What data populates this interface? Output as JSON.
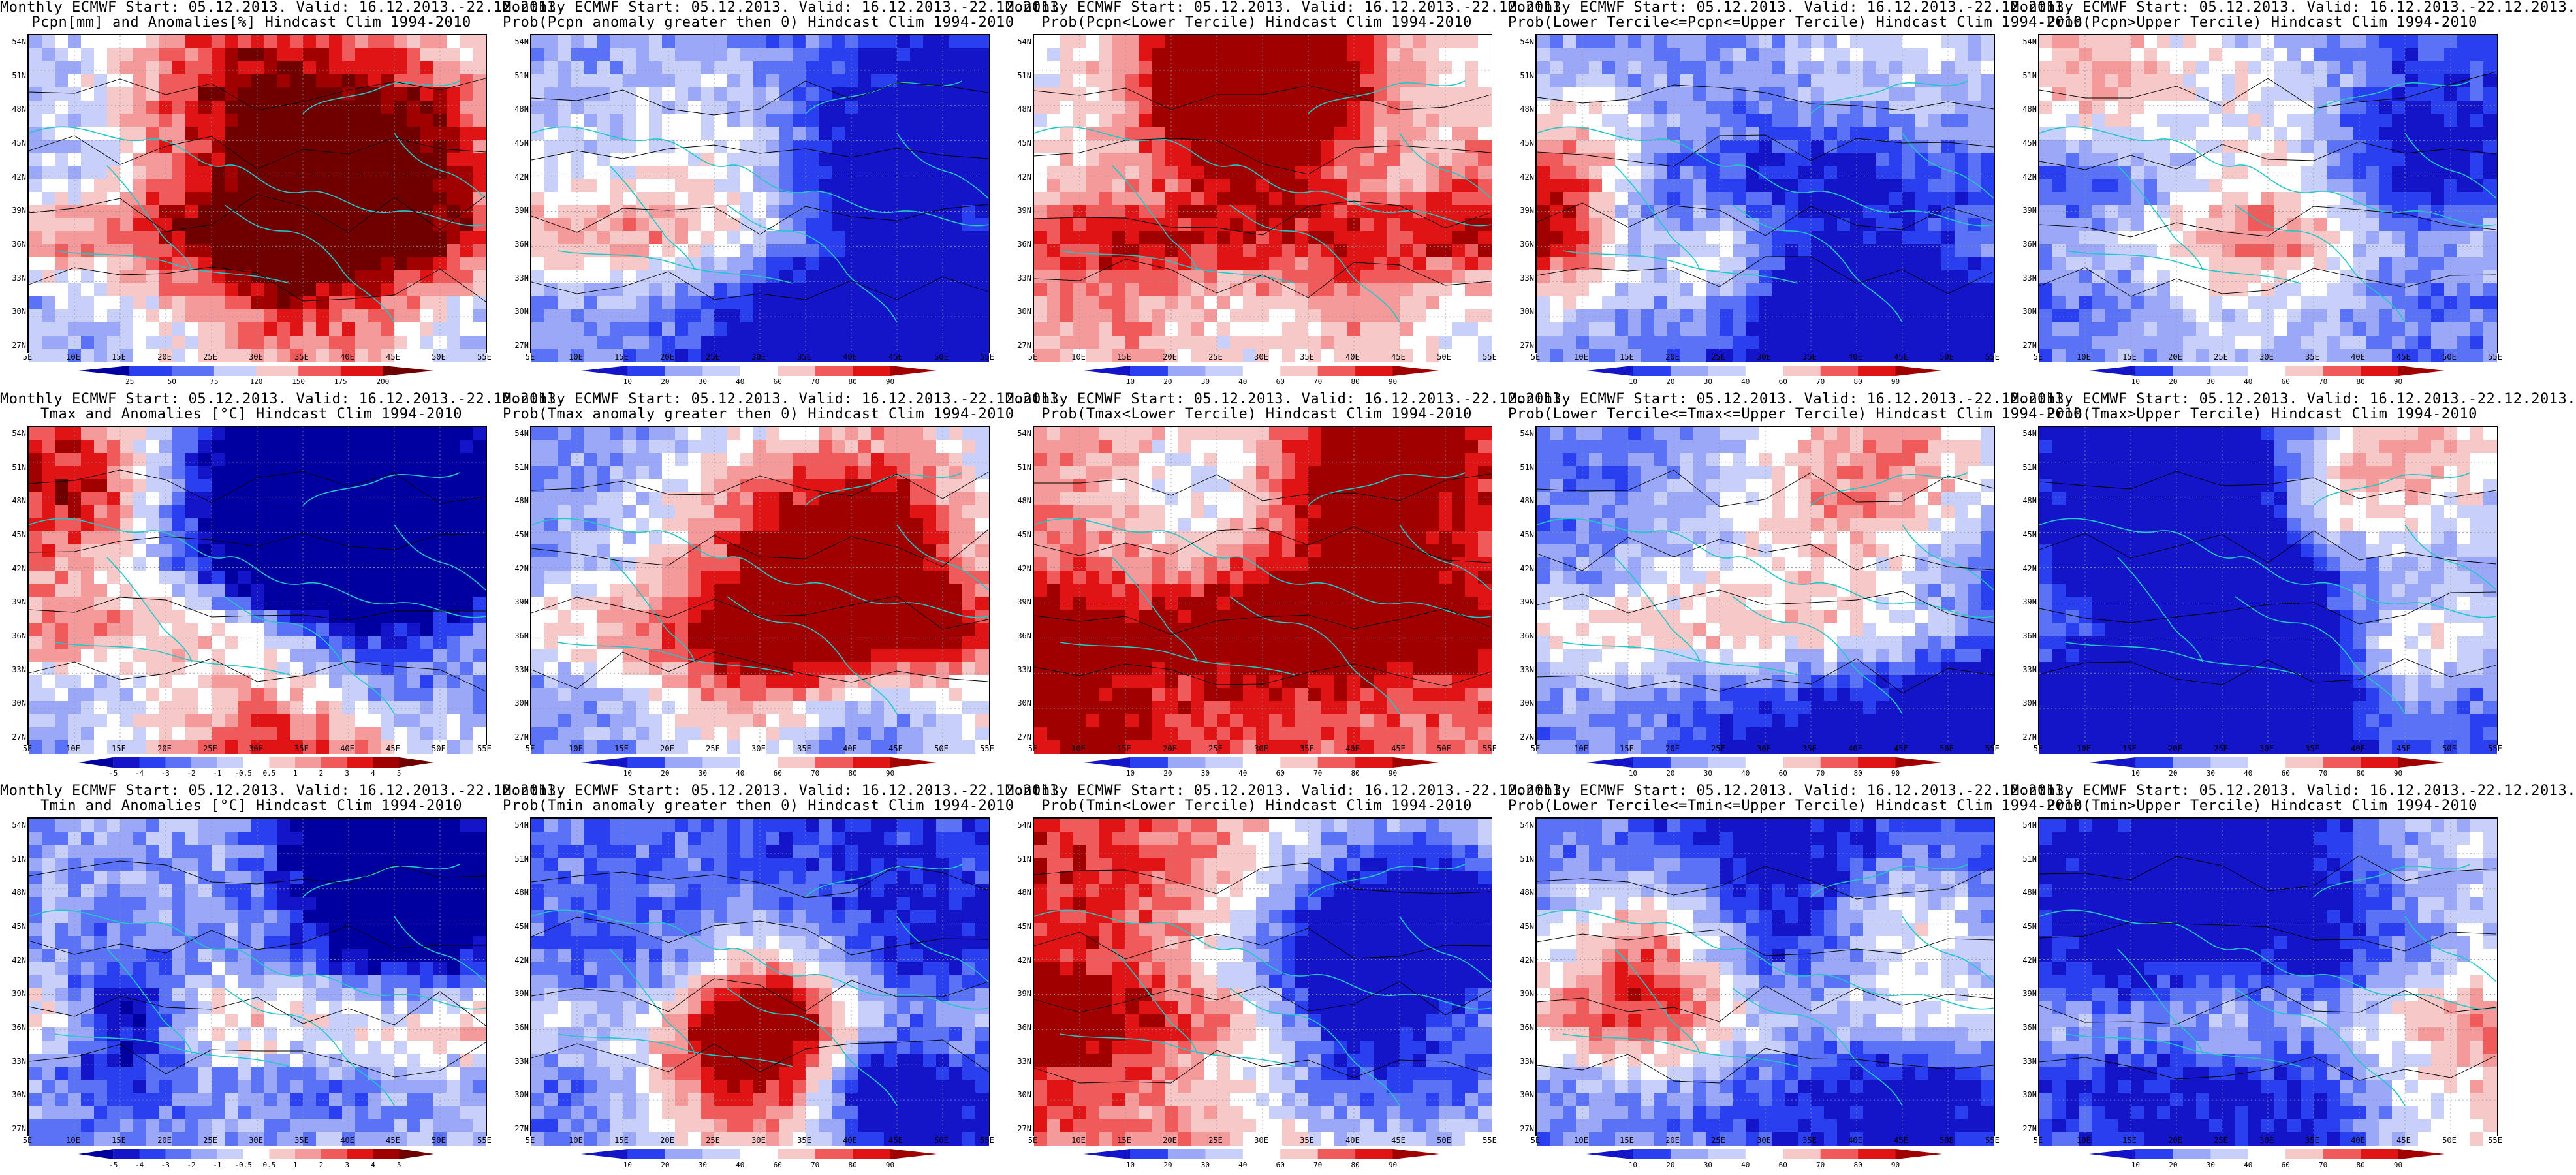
{
  "rows": [
    {
      "variable": "pcpn",
      "panels": [
        {
          "line1": "Monthly ECMWF Start: 05.12.2013. Valid: 16.12.2013.-22.12.2013.",
          "line2": "Pcpn[mm] and Anomalies[%] Hindcast Clim 1994-2010",
          "kind": "anom",
          "colorbar": [
            "25",
            "50",
            "75",
            "120",
            "150",
            "175",
            "200"
          ]
        },
        {
          "line1": "Monthly ECMWF Start: 05.12.2013. Valid: 16.12.2013.-22.12.2013.",
          "line2": "Prob(Pcpn anomaly greater then 0) Hindcast Clim 1994-2010",
          "kind": "prob-blue",
          "colorbar": [
            "10",
            "20",
            "30",
            "40",
            "60",
            "70",
            "80",
            "90"
          ]
        },
        {
          "line1": "Monthly ECMWF Start: 05.12.2013. Valid: 16.12.2013.-22.12.2013.",
          "line2": "Prob(Pcpn<Lower Tercile) Hindcast Clim 1994-2010",
          "kind": "prob-mixed",
          "colorbar": [
            "10",
            "20",
            "30",
            "40",
            "60",
            "70",
            "80",
            "90"
          ]
        },
        {
          "line1": "Monthly ECMWF Start: 05.12.2013. Valid: 16.12.2013.-22.12.2013.",
          "line2": "Prob(Lower Tercile<=Pcpn<=Upper Tercile) Hindcast Clim 1994-2010",
          "kind": "prob-blue",
          "colorbar": [
            "10",
            "20",
            "30",
            "40",
            "60",
            "70",
            "80",
            "90"
          ]
        },
        {
          "line1": "Monthly ECMWF Start: 05.12.2013. Valid: 16.12.2013.-22.12.2013.",
          "line2": "Prob(Pcpn>Upper Tercile) Hindcast Clim 1994-2010",
          "kind": "prob-blue",
          "colorbar": [
            "10",
            "20",
            "30",
            "40",
            "60",
            "70",
            "80",
            "90"
          ]
        }
      ]
    },
    {
      "variable": "tmax",
      "panels": [
        {
          "line1": "Monthly ECMWF Start: 05.12.2013. Valid: 16.12.2013.-22.12.2013.",
          "line2": "Tmax and Anomalies [°C] Hindcast Clim 1994-2010",
          "kind": "anom",
          "colorbar": [
            "-5",
            "-4",
            "-3",
            "-2",
            "-1",
            "-0.5",
            "0.5",
            "1",
            "2",
            "3",
            "4",
            "5"
          ]
        },
        {
          "line1": "Monthly ECMWF Start: 05.12.2013. Valid: 16.12.2013.-22.12.2013.",
          "line2": "Prob(Tmax anomaly greater then 0) Hindcast Clim 1994-2010",
          "kind": "prob-blue",
          "colorbar": [
            "10",
            "20",
            "30",
            "40",
            "60",
            "70",
            "80",
            "90"
          ]
        },
        {
          "line1": "Monthly ECMWF Start: 05.12.2013. Valid: 16.12.2013.-22.12.2013.",
          "line2": "Prob(Tmax<Lower Tercile) Hindcast Clim 1994-2010",
          "kind": "prob-red",
          "colorbar": [
            "10",
            "20",
            "30",
            "40",
            "60",
            "70",
            "80",
            "90"
          ]
        },
        {
          "line1": "Monthly ECMWF Start: 05.12.2013. Valid: 16.12.2013.-22.12.2013.",
          "line2": "Prob(Lower Tercile<=Tmax<=Upper Tercile) Hindcast Clim 1994-2010",
          "kind": "prob-blue",
          "colorbar": [
            "10",
            "20",
            "30",
            "40",
            "60",
            "70",
            "80",
            "90"
          ]
        },
        {
          "line1": "Monthly ECMWF Start: 05.12.2013. Valid: 16.12.2013.-22.12.2013.",
          "line2": "Prob(Tmax>Upper Tercile) Hindcast Clim 1994-2010",
          "kind": "prob-blue",
          "colorbar": [
            "10",
            "20",
            "30",
            "40",
            "60",
            "70",
            "80",
            "90"
          ]
        }
      ]
    },
    {
      "variable": "tmin",
      "panels": [
        {
          "line1": "Monthly ECMWF Start: 05.12.2013. Valid: 16.12.2013.-22.12.2013.",
          "line2": "Tmin and Anomalies [°C] Hindcast Clim 1994-2010",
          "kind": "anom",
          "colorbar": [
            "-5",
            "-4",
            "-3",
            "-2",
            "-1",
            "-0.5",
            "0.5",
            "1",
            "2",
            "3",
            "4",
            "5"
          ]
        },
        {
          "line1": "Monthly ECMWF Start: 05.12.2013. Valid: 16.12.2013.-22.12.2013.",
          "line2": "Prob(Tmin anomaly greater then 0) Hindcast Clim 1994-2010",
          "kind": "prob-blue",
          "colorbar": [
            "10",
            "20",
            "30",
            "40",
            "60",
            "70",
            "80",
            "90"
          ]
        },
        {
          "line1": "Monthly ECMWF Start: 05.12.2013. Valid: 16.12.2013.-22.12.2013.",
          "line2": "Prob(Tmin<Lower Tercile) Hindcast Clim 1994-2010",
          "kind": "prob-red",
          "colorbar": [
            "10",
            "20",
            "30",
            "40",
            "60",
            "70",
            "80",
            "90"
          ]
        },
        {
          "line1": "Monthly ECMWF Start: 05.12.2013. Valid: 16.12.2013.-22.12.2013.",
          "line2": "Prob(Lower Tercile<=Tmin<=Upper Tercile) Hindcast Clim 1994-2010",
          "kind": "prob-blue",
          "colorbar": [
            "10",
            "20",
            "30",
            "40",
            "60",
            "70",
            "80",
            "90"
          ]
        },
        {
          "line1": "Monthly ECMWF Start: 05.12.2013. Valid: 16.12.2013.-22.12.2013.",
          "line2": "Prob(Tmin>Upper Tercile) Hindcast Clim 1994-2010",
          "kind": "prob-blue",
          "colorbar": [
            "10",
            "20",
            "30",
            "40",
            "60",
            "70",
            "80",
            "90"
          ]
        }
      ]
    }
  ],
  "lat_ticks": [
    "54N",
    "51N",
    "48N",
    "45N",
    "42N",
    "39N",
    "36N",
    "33N",
    "30N",
    "27N"
  ],
  "lon_ticks": [
    "5E",
    "10E",
    "15E",
    "20E",
    "25E",
    "30E",
    "35E",
    "40E",
    "45E",
    "50E",
    "55E"
  ],
  "palette": {
    "prob": [
      "#1414c8",
      "#2a3ff0",
      "#5a72f5",
      "#9aa8f7",
      "#c8d0fa",
      "#ffffff",
      "#f7c8c8",
      "#f59a9a",
      "#f05a5a",
      "#e01414",
      "#a00000"
    ],
    "anom": [
      "#0000a0",
      "#1414c8",
      "#2a3ff0",
      "#5a72f5",
      "#9aa8f7",
      "#c8d0fa",
      "#ffffff",
      "#f7c8c8",
      "#f59a9a",
      "#f05a5a",
      "#e01414",
      "#a00000",
      "#700000"
    ],
    "coast": "#20c8c8",
    "contour": "#000000"
  }
}
